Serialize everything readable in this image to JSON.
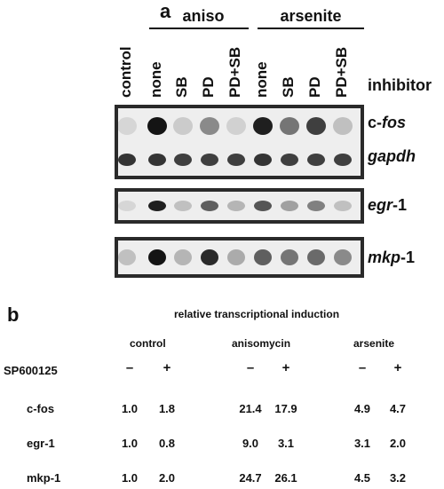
{
  "panel_a": {
    "letter": "a",
    "groups": [
      {
        "label": "aniso"
      },
      {
        "label": "arsenite"
      }
    ],
    "lanes": [
      "control",
      "none",
      "SB",
      "PD",
      "PD+SB",
      "none",
      "SB",
      "PD",
      "PD+SB"
    ],
    "inhibitor_label": "inhibitor",
    "blots": [
      {
        "labels": [
          {
            "text": "c-",
            "italic_text": "fos"
          },
          {
            "text": "",
            "italic_text": "gapdh"
          }
        ]
      },
      {
        "labels": [
          {
            "text": "",
            "italic_text": "egr",
            "suffix": "-1"
          }
        ]
      },
      {
        "labels": [
          {
            "text": "",
            "italic_text": "mkp",
            "suffix": "-1"
          }
        ]
      }
    ],
    "band_intensities": {
      "c_fos": [
        0.1,
        1.0,
        0.15,
        0.45,
        0.12,
        0.95,
        0.55,
        0.8,
        0.2
      ],
      "gapdh": [
        0.85,
        0.85,
        0.8,
        0.8,
        0.8,
        0.85,
        0.8,
        0.8,
        0.8
      ],
      "egr_1": [
        0.1,
        0.95,
        0.2,
        0.65,
        0.25,
        0.7,
        0.35,
        0.5,
        0.2
      ],
      "mkp_1": [
        0.2,
        1.0,
        0.25,
        0.9,
        0.3,
        0.65,
        0.55,
        0.6,
        0.45
      ]
    }
  },
  "panel_b": {
    "letter": "b",
    "title": "relative transcriptional induction",
    "treatments": [
      "control",
      "anisomycin",
      "arsenite"
    ],
    "inhibitor_row_label": "SP600125",
    "signs": [
      "–",
      "+",
      "–",
      "+",
      "–",
      "+"
    ],
    "rows": [
      {
        "gene": "c-fos",
        "values": [
          "1.0",
          "1.8",
          "21.4",
          "17.9",
          "4.9",
          "4.7"
        ]
      },
      {
        "gene": "egr-1",
        "values": [
          "1.0",
          "0.8",
          "9.0",
          "3.1",
          "3.1",
          "2.0"
        ]
      },
      {
        "gene": "mkp-1",
        "values": [
          "1.0",
          "2.0",
          "24.7",
          "26.1",
          "4.5",
          "3.2"
        ]
      }
    ]
  }
}
